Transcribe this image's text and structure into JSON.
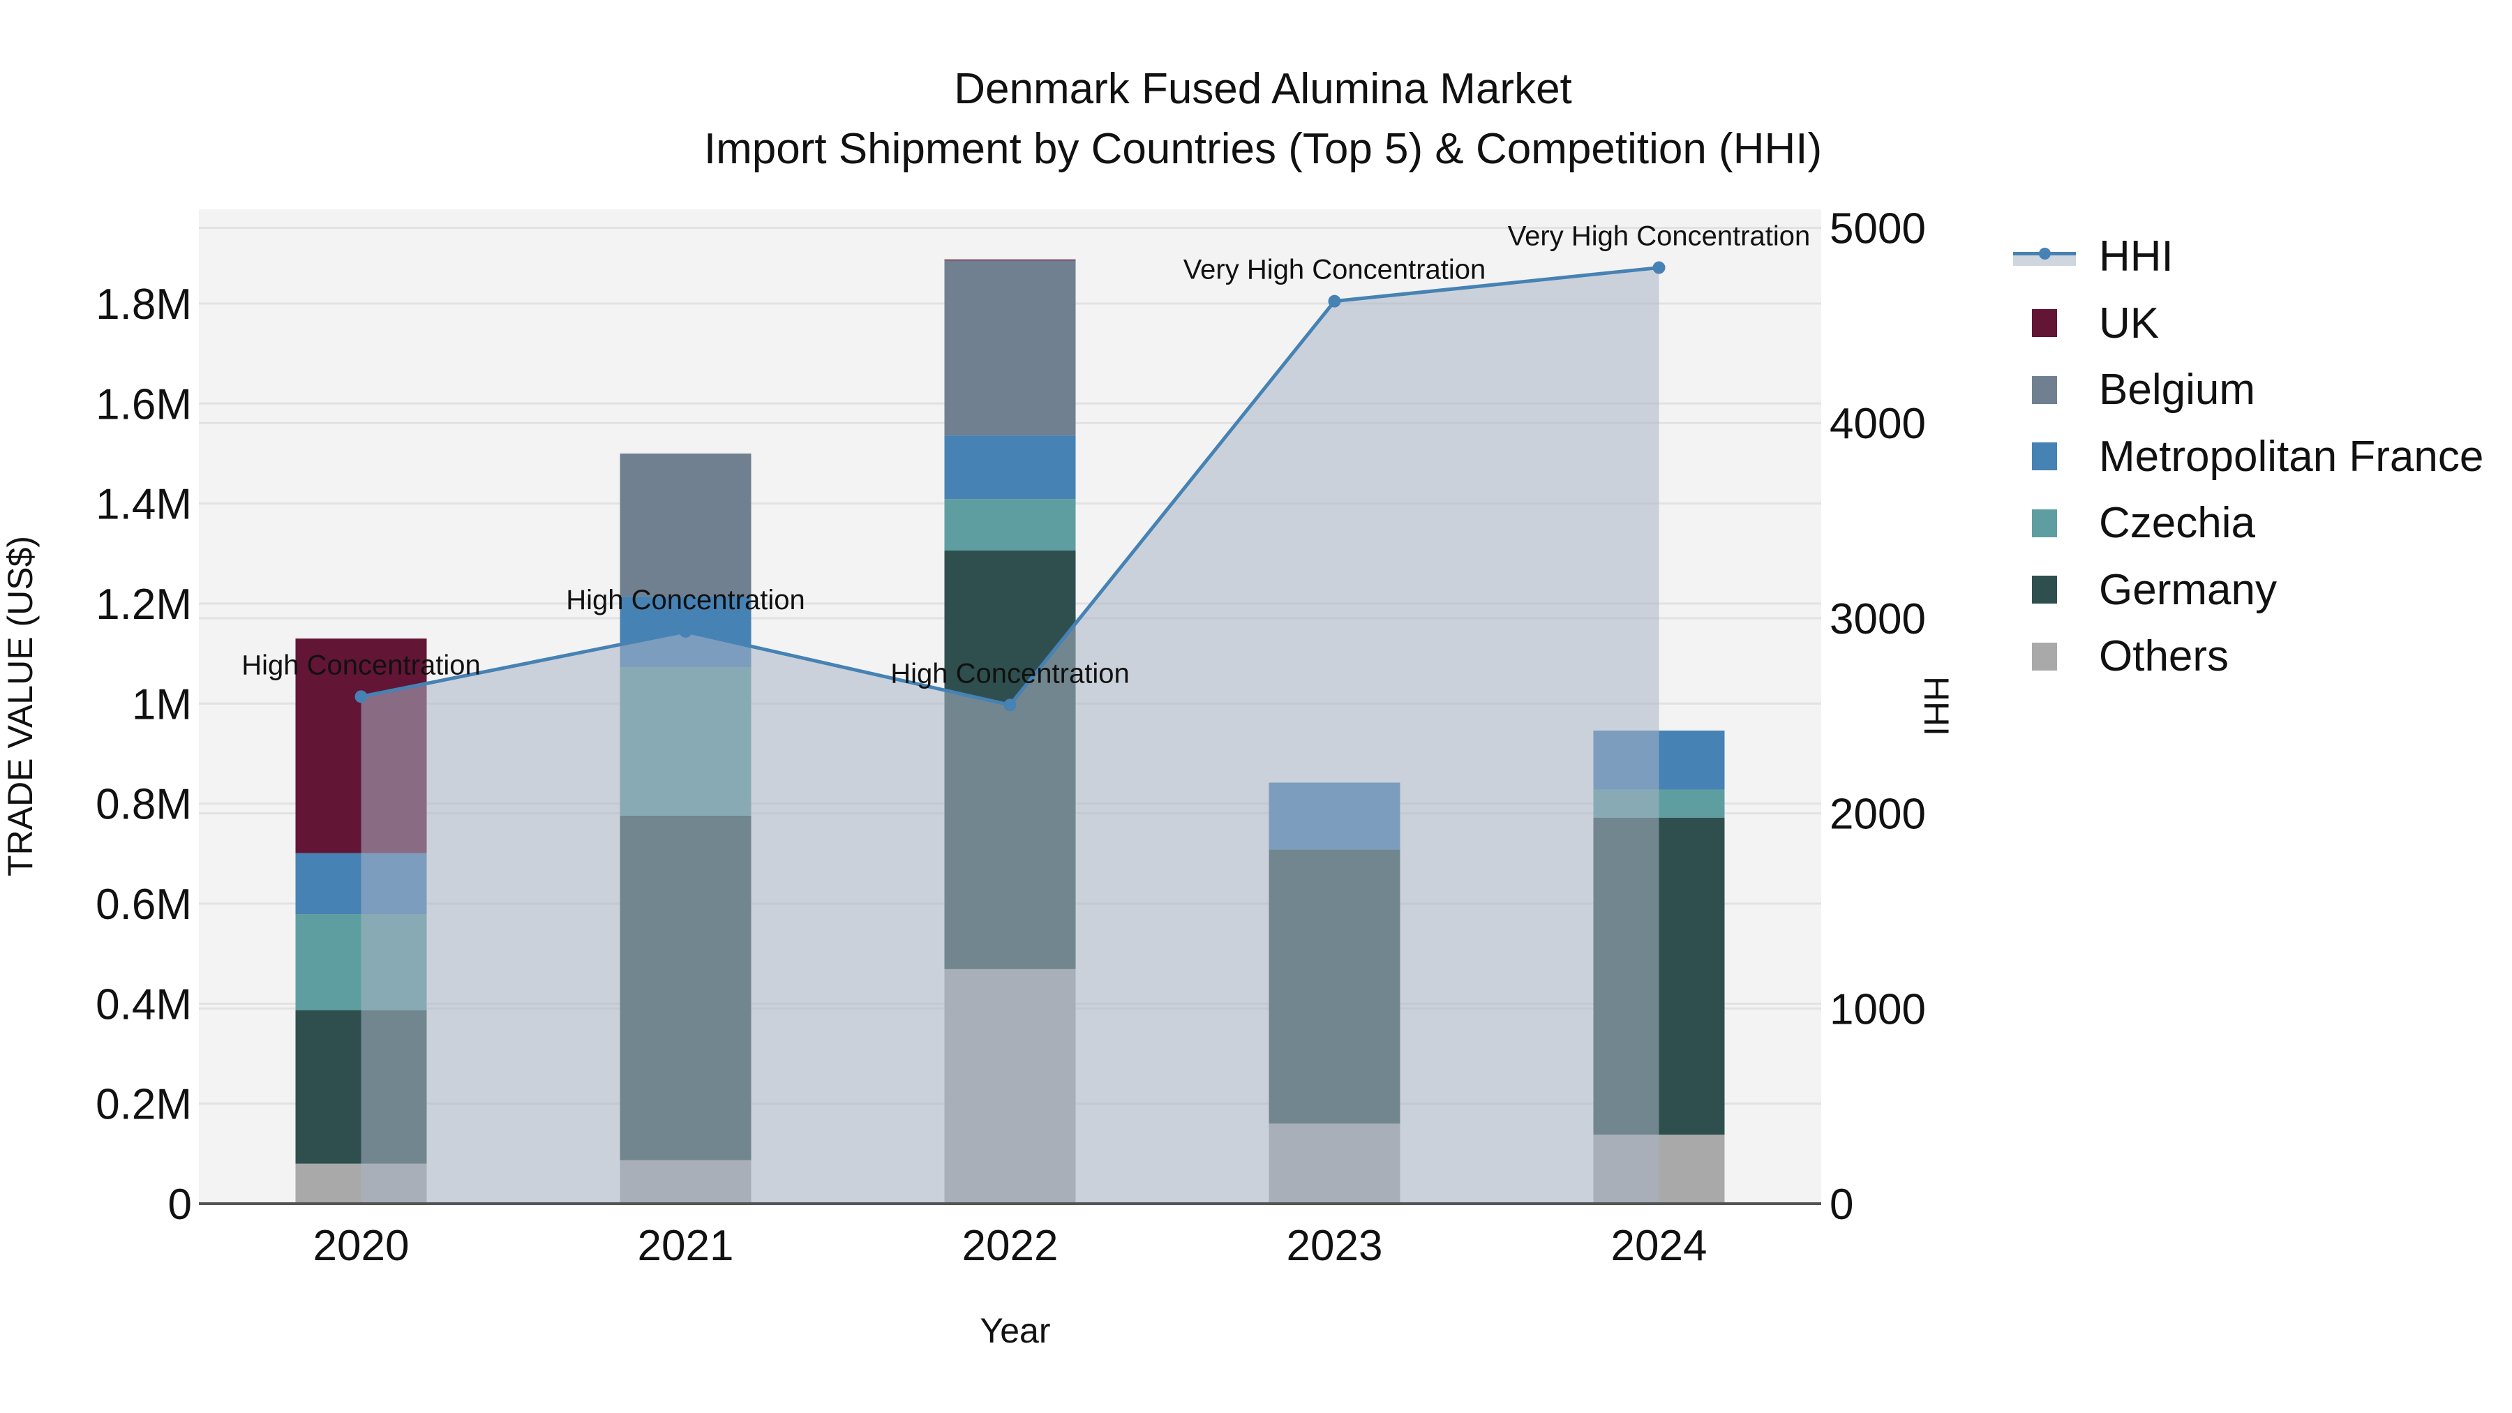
{
  "header": {
    "title": "Denmark Fused Alumina Market",
    "subtitle": "Import Shipment by Countries (Top 5) & Competition (HHI)"
  },
  "legend": {
    "items": [
      {
        "label": "HHI",
        "type": "line",
        "color": "#4682B4"
      },
      {
        "label": "UK",
        "type": "bar",
        "color": "#631535"
      },
      {
        "label": "Belgium",
        "type": "bar",
        "color": "#708090"
      },
      {
        "label": "Metropolitan France",
        "type": "bar",
        "color": "#4682B4"
      },
      {
        "label": "Czechia",
        "type": "bar",
        "color": "#5F9EA0"
      },
      {
        "label": "Germany",
        "type": "bar",
        "color": "#2F4F4F"
      },
      {
        "label": "Others",
        "type": "bar",
        "color": "#A9A9A9"
      }
    ]
  },
  "colors": {
    "plot_bg": "#F3F3F3",
    "grid": "#E2E2E2",
    "hhi_line": "#4682B4",
    "hhi_fill": "rgba(170,180,196,0.55)",
    "axis_line": "#555555"
  },
  "chart_data": {
    "type": "bar",
    "stacked": true,
    "title": "Denmark Fused Alumina Market",
    "subtitle": "Import Shipment by Countries (Top 5) & Competition (HHI)",
    "xlabel": "Year",
    "ylabel": "TRADE VALUE (US$)",
    "y2label": "HHI",
    "categories": [
      "2020",
      "2021",
      "2022",
      "2023",
      "2024"
    ],
    "ylim": [
      0,
      1980000
    ],
    "y_ticks": [
      0,
      200000,
      400000,
      600000,
      800000,
      1000000,
      1200000,
      1400000,
      1600000,
      1800000
    ],
    "y_tick_labels": [
      "0",
      "0.2M",
      "0.4M",
      "0.6M",
      "0.8M",
      "1M",
      "1.2M",
      "1.4M",
      "1.6M",
      "1.8M"
    ],
    "y2lim": [
      0,
      5100
    ],
    "y2_ticks": [
      0,
      1000,
      2000,
      3000,
      4000,
      5000
    ],
    "y2_tick_labels": [
      "0",
      "1000",
      "2000",
      "3000",
      "4000",
      "5000"
    ],
    "grid": true,
    "legend_position": "right",
    "series": [
      {
        "name": "Others",
        "color": "#A9A9A9",
        "values": [
          80000,
          87000,
          469000,
          160000,
          138000
        ]
      },
      {
        "name": "Germany",
        "color": "#2F4F4F",
        "values": [
          307000,
          689000,
          837000,
          548000,
          634000
        ]
      },
      {
        "name": "Czechia",
        "color": "#5F9EA0",
        "values": [
          192000,
          297000,
          103000,
          0,
          56000
        ]
      },
      {
        "name": "Metropolitan France",
        "color": "#4682B4",
        "values": [
          122000,
          141000,
          127000,
          134000,
          118000
        ]
      },
      {
        "name": "Belgium",
        "color": "#708090",
        "values": [
          0,
          286000,
          350000,
          0,
          0
        ]
      },
      {
        "name": "UK",
        "color": "#631535",
        "values": [
          429000,
          0,
          2000,
          0,
          0
        ]
      }
    ],
    "line_series": {
      "name": "HHI",
      "axis": "y2",
      "color": "#4682B4",
      "fill": "tozeroy",
      "values": [
        2598,
        2932,
        2555,
        4624,
        4796
      ],
      "annotations": [
        "High Concentration",
        "High Concentration",
        "High Concentration",
        "Very High Concentration",
        "Very High Concentration"
      ]
    }
  }
}
